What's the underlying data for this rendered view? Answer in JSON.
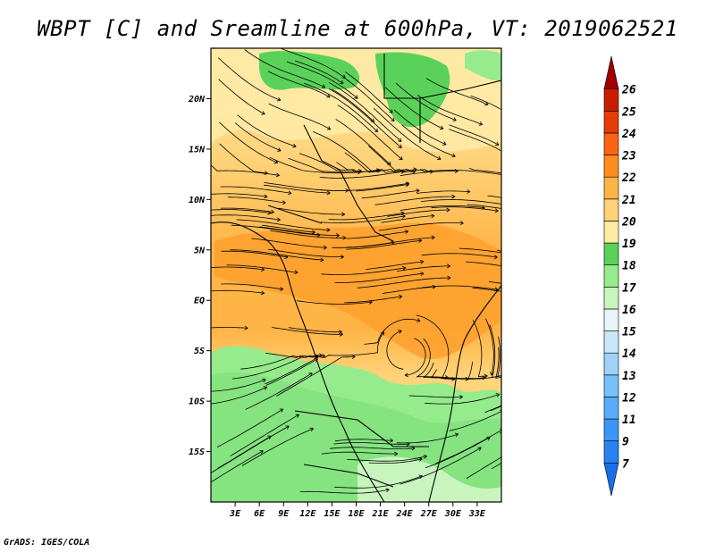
{
  "title": "WBPT [C] and Sreamline at 600hPa, VT: 2019062521",
  "credit": "GrADS: IGES/COLA",
  "map": {
    "lon_range": [
      0,
      36
    ],
    "lat_range": [
      -20,
      25
    ],
    "lat_ticks": [
      {
        "value": 20,
        "label": "20N"
      },
      {
        "value": 15,
        "label": "15N"
      },
      {
        "value": 10,
        "label": "10N"
      },
      {
        "value": 5,
        "label": "5N"
      },
      {
        "value": 0,
        "label": "EQ"
      },
      {
        "value": -5,
        "label": "5S"
      },
      {
        "value": -10,
        "label": "10S"
      },
      {
        "value": -15,
        "label": "15S"
      }
    ],
    "lon_ticks": [
      {
        "value": 3,
        "label": "3E"
      },
      {
        "value": 6,
        "label": "6E"
      },
      {
        "value": 9,
        "label": "9E"
      },
      {
        "value": 12,
        "label": "12E"
      },
      {
        "value": 15,
        "label": "15E"
      },
      {
        "value": 18,
        "label": "18E"
      },
      {
        "value": 21,
        "label": "21E"
      },
      {
        "value": 24,
        "label": "24E"
      },
      {
        "value": 27,
        "label": "27E"
      },
      {
        "value": 30,
        "label": "30E"
      },
      {
        "value": 33,
        "label": "33E"
      }
    ]
  },
  "colorbar": {
    "levels": [
      "7",
      "9",
      "11",
      "12",
      "13",
      "14",
      "15",
      "16",
      "17",
      "18",
      "19",
      "20",
      "21",
      "22",
      "23",
      "24",
      "25",
      "26"
    ],
    "colors": [
      "#1e6ee6",
      "#2882f0",
      "#3c96f5",
      "#5aacfa",
      "#78c0fa",
      "#9ed2fa",
      "#c8e8fa",
      "#e6f5fa",
      "#c8f5be",
      "#96eb8c",
      "#5ad25a",
      "#ffeaa5",
      "#ffd278",
      "#ffb446",
      "#ff8c1e",
      "#fa6414",
      "#e63c0a",
      "#c81e00",
      "#a00000"
    ]
  }
}
